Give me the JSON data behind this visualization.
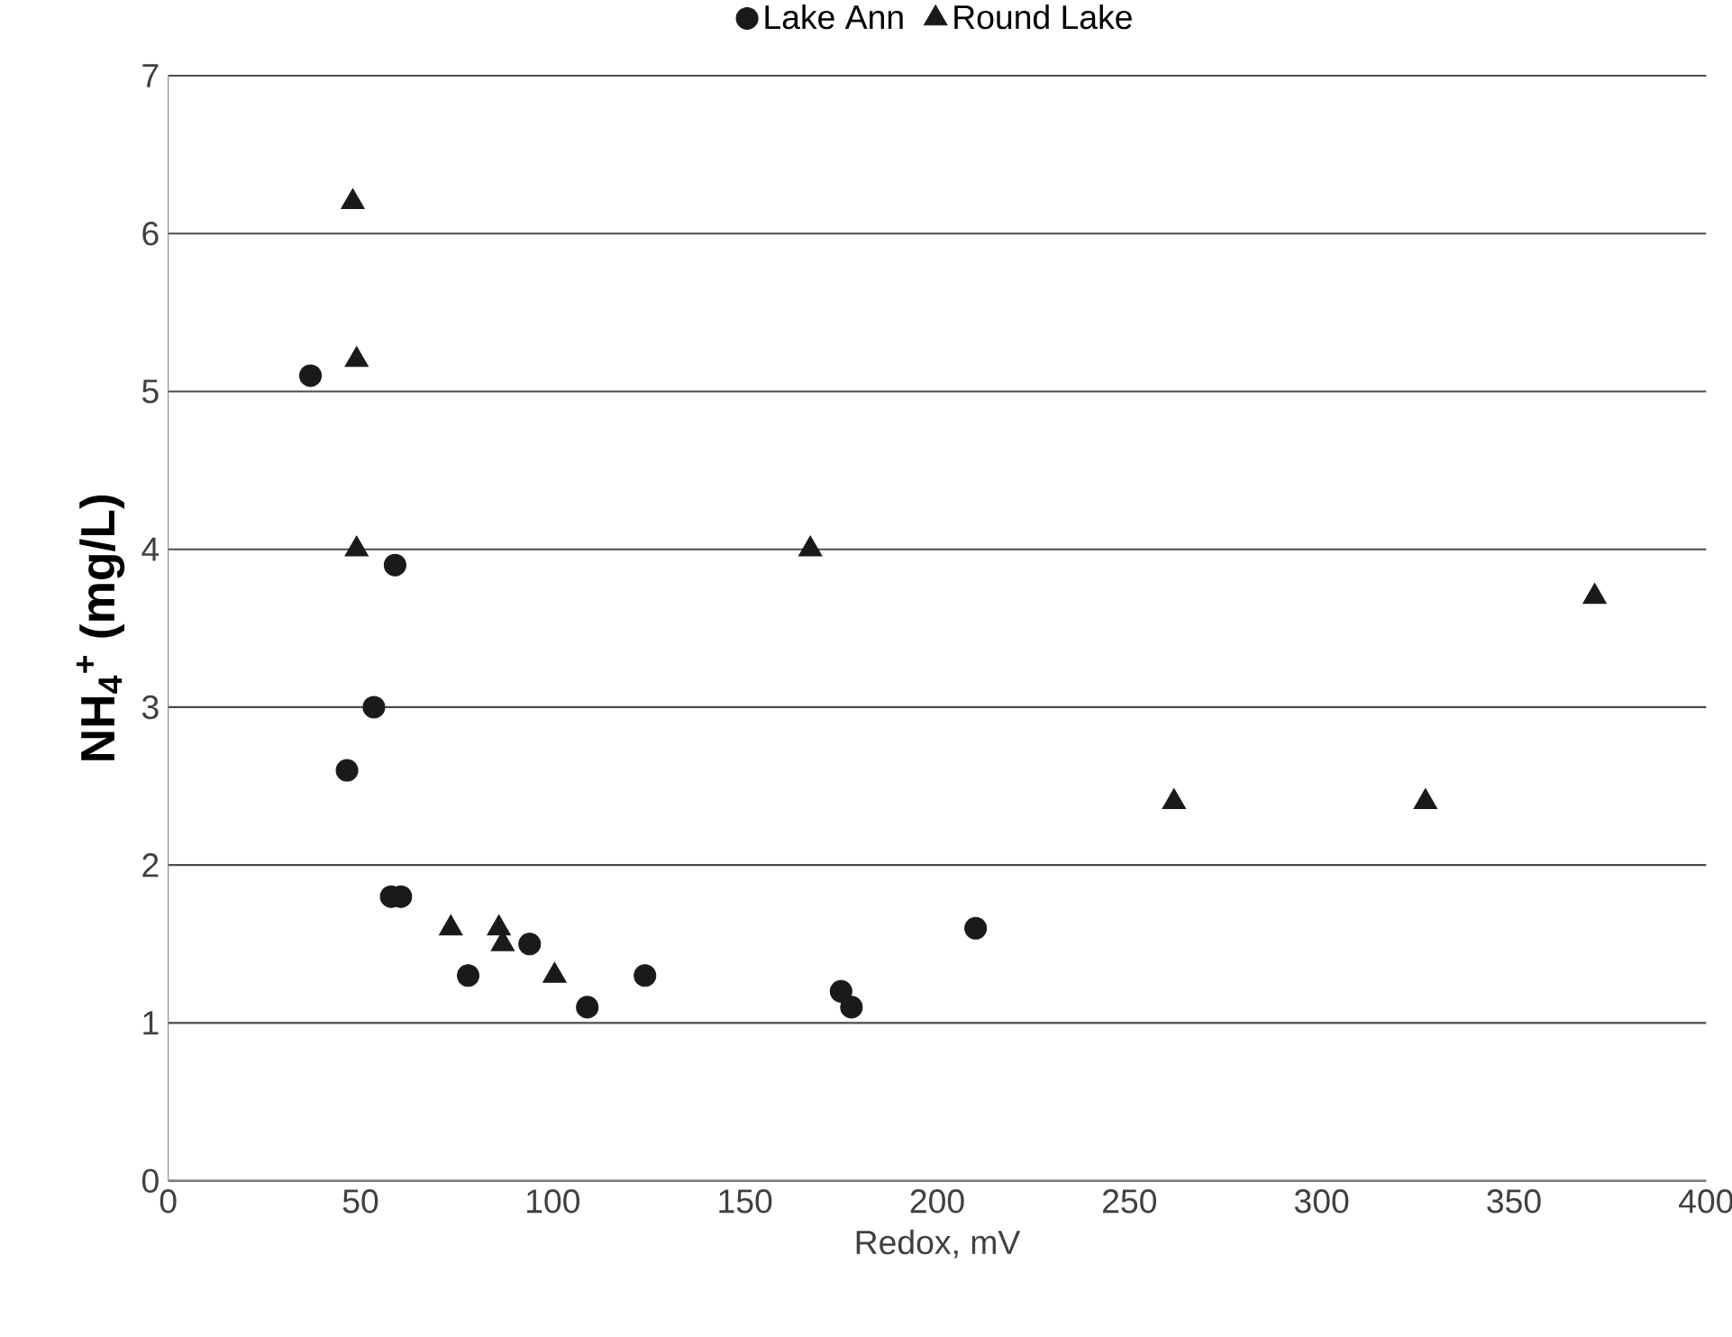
{
  "chart_data": {
    "type": "scatter",
    "xlabel": "Redox, mV",
    "ylabel": "NH$_{4}$$^{+}$ (mg/L)",
    "xlim": [
      0,
      400
    ],
    "ylim": [
      0,
      7
    ],
    "xticks": [
      0,
      50,
      100,
      150,
      200,
      250,
      300,
      350,
      400
    ],
    "yticks": [
      0,
      1,
      2,
      3,
      4,
      5,
      6,
      7
    ],
    "grid": "y",
    "legend": "top",
    "series": [
      {
        "name": "Lake Ann",
        "color": "#1a1a1a",
        "marker": "circle",
        "x": [
          37,
          59,
          53.5,
          46.5,
          58,
          60.5,
          78,
          94,
          109,
          124,
          175,
          177.7,
          210
        ],
        "values": [
          5.1,
          3.9,
          3.0,
          2.6,
          1.8,
          1.8,
          1.3,
          1.5,
          1.1,
          1.3,
          1.2,
          1.1,
          1.6
        ]
      },
      {
        "name": "Round Lake",
        "color": "#1a1a1a",
        "marker": "triangle",
        "x": [
          48,
          49,
          49,
          167,
          73.5,
          86,
          87,
          100.5,
          261.6,
          327,
          371
        ],
        "values": [
          6.2,
          5.2,
          4.0,
          4.0,
          1.6,
          1.6,
          1.5,
          1.3,
          2.4,
          2.4,
          3.7
        ]
      }
    ]
  }
}
